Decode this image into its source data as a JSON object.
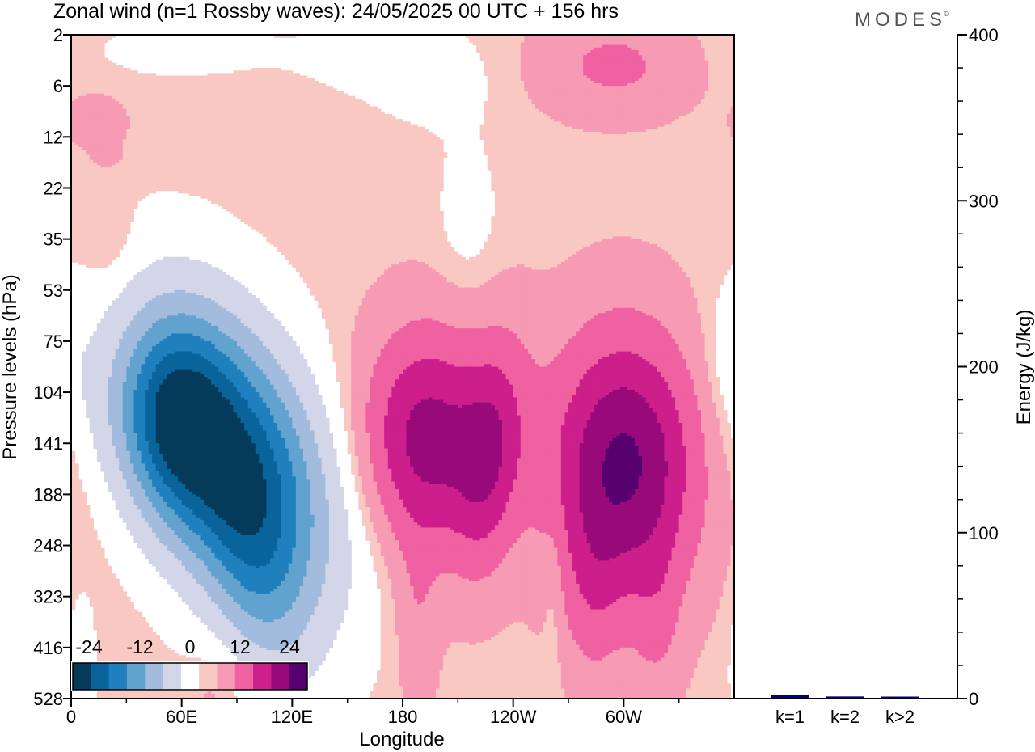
{
  "title": "Zonal wind (n=1 Rossby waves):  24/05/2025  00 UTC  + 156 hrs",
  "logo": "MODES",
  "logo_mark": "©",
  "colors": {
    "neg": [
      "#063a5a",
      "#08649a",
      "#2080bd",
      "#62a2cf",
      "#a3bbdc",
      "#d3d6e8"
    ],
    "zero": "#ffffff",
    "pos": [
      "#f9c8c3",
      "#f79ab4",
      "#ef61a0",
      "#cc1f8b",
      "#980a7a",
      "#57006f"
    ],
    "energy_bar": "#00007a"
  },
  "chart_data": [
    {
      "type": "heatmap",
      "title": "Zonal wind (n=1 Rossby waves):  24/05/2025  00 UTC  + 156 hrs",
      "xlabel": "Longitude",
      "ylabel": "Pressure levels (hPa)",
      "x_ticks": [
        "0",
        "60E",
        "120E",
        "180",
        "120W",
        "60W"
      ],
      "y_ticks": [
        "2",
        "6",
        "12",
        "22",
        "35",
        "53",
        "75",
        "104",
        "141",
        "188",
        "248",
        "323",
        "416",
        "528"
      ],
      "colorbar": {
        "tick_labels": [
          "-24",
          "-12",
          "0",
          "12",
          "24"
        ],
        "levels": [
          -30,
          -25,
          -20,
          -15,
          -10,
          -5,
          -1,
          1,
          5,
          10,
          15,
          20,
          25,
          30
        ]
      },
      "anomalies": [
        {
          "sign": "neg",
          "lon": 88,
          "lev": 8.3,
          "amp": 30,
          "sx": 33,
          "sy": 2.0,
          "tilt": 0.6
        },
        {
          "sign": "neg",
          "lon": 55,
          "lev": 7.6,
          "amp": 16,
          "sx": 18,
          "sy": 1.3,
          "tilt": 0.0
        },
        {
          "sign": "neg",
          "lon": 100,
          "lev": 10.5,
          "amp": 8,
          "sx": 18,
          "sy": 1.6,
          "tilt": 0.5
        },
        {
          "sign": "neg",
          "lon": 20,
          "lev": 7.2,
          "amp": 3,
          "sx": 22,
          "sy": 1.2,
          "tilt": 0.0
        },
        {
          "sign": "neg",
          "lon": 5,
          "lev": 12.3,
          "amp": 3,
          "sx": 6,
          "sy": 1.1,
          "tilt": 0.0
        },
        {
          "sign": "neg",
          "lon": 198,
          "lev": 0.9,
          "amp": 2.2,
          "sx": 24,
          "sy": 0.7,
          "tilt": 0.0
        },
        {
          "sign": "neg",
          "lon": 165,
          "lev": 0.5,
          "amp": 1.8,
          "sx": 28,
          "sy": 0.5,
          "tilt": 0.0
        },
        {
          "sign": "neg",
          "lon": 60,
          "lev": 0.3,
          "amp": 1.6,
          "sx": 50,
          "sy": 0.5,
          "tilt": 0.0
        },
        {
          "sign": "neg",
          "lon": 215,
          "lev": 3.6,
          "amp": 2.4,
          "sx": 12,
          "sy": 1.1,
          "tilt": 0.0
        },
        {
          "sign": "neg",
          "lon": 262,
          "lev": 10.9,
          "amp": 2.4,
          "sx": 4,
          "sy": 1.2,
          "tilt": 0.0
        },
        {
          "sign": "neg",
          "lon": 357,
          "lev": 6.3,
          "amp": 2.2,
          "sx": 9,
          "sy": 0.9,
          "tilt": 0.0
        },
        {
          "sign": "pos",
          "lon": 193,
          "lev": 7.9,
          "amp": 17,
          "sx": 24,
          "sy": 1.5,
          "tilt": 0.0
        },
        {
          "sign": "pos",
          "lon": 188,
          "lev": 11.5,
          "amp": 4,
          "sx": 8,
          "sy": 1.4,
          "tilt": 0.0
        },
        {
          "sign": "pos",
          "lon": 228,
          "lev": 8.2,
          "amp": 11,
          "sx": 13,
          "sy": 1.6,
          "tilt": -0.2
        },
        {
          "sign": "pos",
          "lon": 300,
          "lev": 8.4,
          "amp": 21,
          "sx": 28,
          "sy": 1.8,
          "tilt": 0.0
        },
        {
          "sign": "pos",
          "lon": 283,
          "lev": 11.0,
          "amp": 5,
          "sx": 12,
          "sy": 1.3,
          "tilt": 0.0
        },
        {
          "sign": "pos",
          "lon": 318,
          "lev": 11.5,
          "amp": 4,
          "sx": 10,
          "sy": 1.2,
          "tilt": 0.0
        },
        {
          "sign": "pos",
          "lon": 295,
          "lev": 0.6,
          "amp": 6,
          "sx": 30,
          "sy": 0.7,
          "tilt": 0.0
        },
        {
          "sign": "pos",
          "lon": 15,
          "lev": 1.5,
          "amp": 2.2,
          "sx": 10,
          "sy": 0.28,
          "tilt": 0.0
        },
        {
          "sign": "pos",
          "lon": 15,
          "lev": 1.9,
          "amp": 2.2,
          "sx": 12,
          "sy": 0.3,
          "tilt": 0.0
        },
        {
          "sign": "pos",
          "lon": 20,
          "lev": 2.4,
          "amp": 1.8,
          "sx": 7,
          "sy": 0.18,
          "tilt": 0.0
        },
        {
          "sign": "pos",
          "lon": 20,
          "lev": 4.0,
          "amp": 2.4,
          "sx": 9,
          "sy": 0.6,
          "tilt": 0.0
        },
        {
          "sign": "pos",
          "lon": 78,
          "lev": 12.8,
          "amp": 2.2,
          "sx": 10,
          "sy": 0.6,
          "tilt": 0.0
        }
      ]
    },
    {
      "type": "bar",
      "categories": [
        "k=1",
        "k=2",
        "k>2"
      ],
      "values": [
        1.5,
        0.8,
        0.6
      ],
      "ylabel": "Energy (J/kg)",
      "y_ticks": [
        "0",
        "100",
        "200",
        "300",
        "400"
      ],
      "ylim": [
        0,
        400
      ]
    }
  ]
}
